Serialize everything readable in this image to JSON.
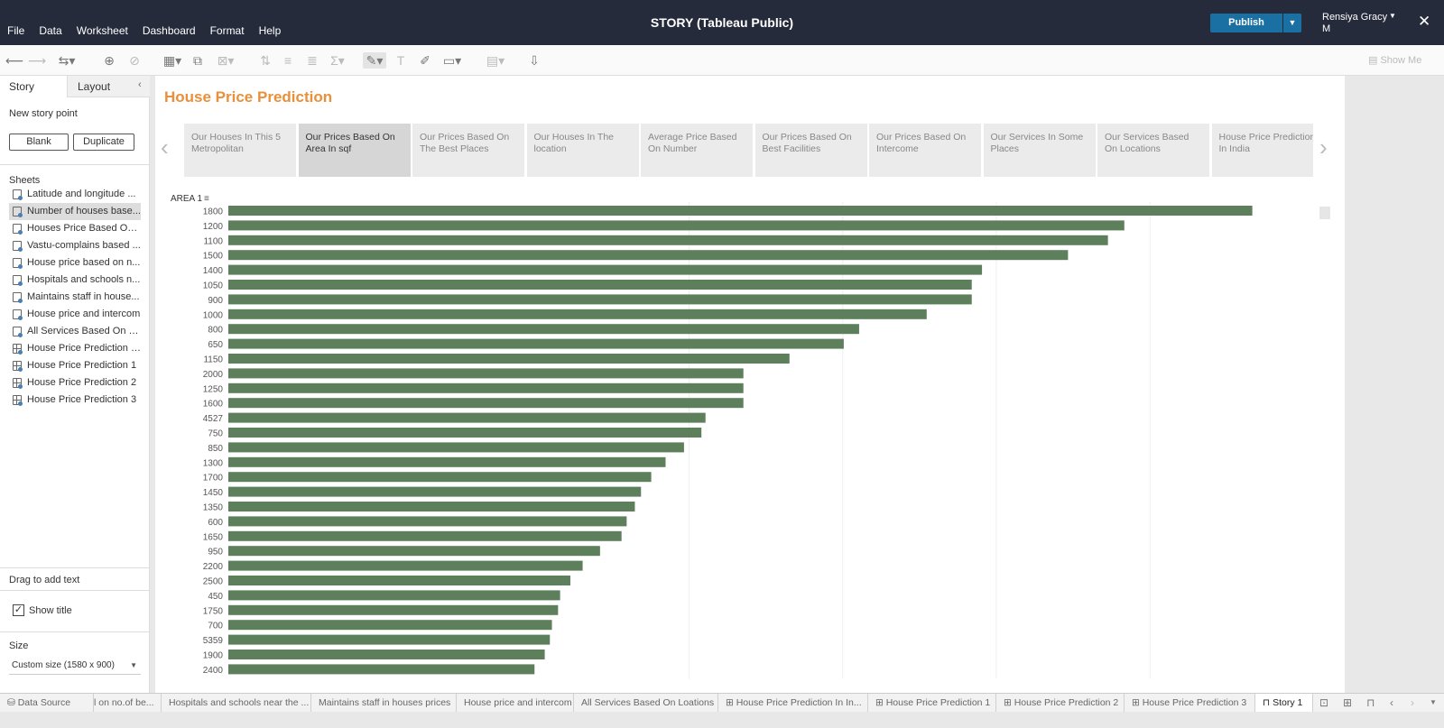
{
  "app": {
    "title": "STORY (Tableau Public)"
  },
  "menu": [
    "File",
    "Data",
    "Worksheet",
    "Dashboard",
    "Format",
    "Help"
  ],
  "header": {
    "publish_label": "Publish",
    "user_line1": "Rensiya Gracy",
    "user_line2": "M"
  },
  "toolbar": {
    "show_me": "Show Me"
  },
  "panel": {
    "tab_story": "Story",
    "tab_layout": "Layout",
    "new_story_point": "New story point",
    "blank_label": "Blank",
    "duplicate_label": "Duplicate",
    "sheets_label": "Sheets",
    "sheets": [
      "Latitude and longitude ...",
      "Number of houses base...",
      "Houses Price Based On ...",
      "Vastu-complains based ...",
      "House price based on n...",
      "Hospitals and schools n...",
      "Maintains staff in house...",
      "House price and intercom",
      "All Services Based On L...",
      "House Price Prediction I...",
      "House Price Prediction 1",
      "House Price Prediction 2",
      "House Price Prediction 3"
    ],
    "drag_text": "Drag to add text",
    "show_title": "Show title",
    "size_label": "Size",
    "size_value": "Custom size (1580 x 900)"
  },
  "story": {
    "title": "House Price Prediction",
    "points": [
      "Our Houses In This 5 Metropolitan",
      "Our Prices Based On Area In sqf",
      "Our Prices Based On The Best Places",
      "Our Houses In The location",
      "Average Price Based On Number",
      "Our Prices Based On Best Facilities",
      "Our Prices Based On Intercome",
      "Our Services In Some Places",
      "Our Services Based On Locations",
      "House Price Prediction In India"
    ],
    "active_index": 1
  },
  "chart_data": {
    "type": "bar",
    "orientation": "horizontal",
    "row_header": "AREA 1",
    "categories": [
      "1800",
      "1200",
      "1100",
      "1500",
      "1400",
      "1050",
      "900",
      "1000",
      "800",
      "650",
      "1150",
      "2000",
      "1250",
      "1600",
      "4527",
      "750",
      "850",
      "1300",
      "1700",
      "1450",
      "1350",
      "600",
      "1650",
      "950",
      "2200",
      "2500",
      "450",
      "1750",
      "700",
      "5359",
      "1900",
      "2400"
    ],
    "values": [
      100,
      87.5,
      85.9,
      82,
      73.6,
      72.6,
      72.6,
      68.2,
      61.6,
      60.1,
      54.8,
      50.3,
      50.3,
      50.3,
      46.6,
      46.2,
      44.5,
      42.7,
      41.3,
      40.3,
      39.7,
      38.9,
      38.4,
      36.3,
      34.6,
      33.4,
      32.4,
      32.2,
      31.6,
      31.4,
      30.9,
      29.9
    ],
    "xlim": [
      0,
      104
    ],
    "bar_color": "#5d7f5b",
    "gridline_values": [
      45,
      60,
      75,
      90
    ]
  },
  "bottom_tabs": [
    "Data Source",
    "l on no.of be...",
    "Hospitals and schools near the ...",
    "Maintains staff in houses prices",
    "House price and intercom",
    "All Services Based On Loations",
    "House Price Prediction In In...",
    "House Price Prediction 1",
    "House Price Prediction 2",
    "House Price Prediction 3",
    "Story 1"
  ]
}
